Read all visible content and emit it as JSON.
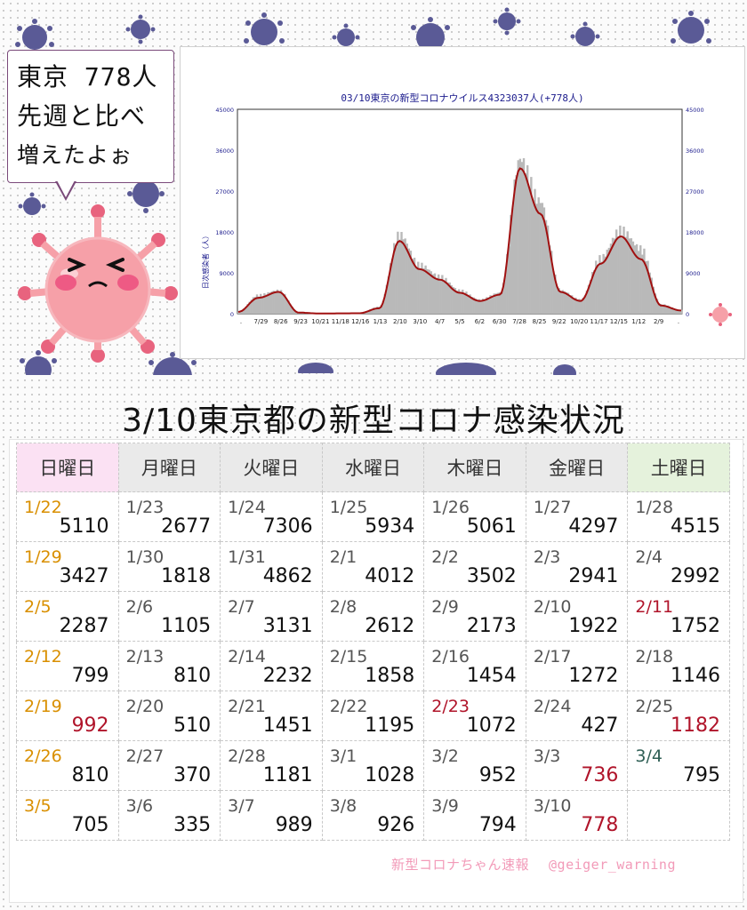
{
  "bubble": {
    "line1": "東京 778人",
    "line2": "先週と比べ",
    "line3": "増えたよぉ"
  },
  "chart_data": {
    "type": "bar",
    "title": "03/10東京の新型コロナウイルス4323037人(+778人)",
    "ylabel": "日次感染者（人）",
    "ylim": [
      0,
      45000
    ],
    "y_ticks": [
      "0",
      "9000",
      "18000",
      "27000",
      "36000",
      "45000"
    ],
    "categories": [
      ".",
      "7/29",
      "8/26",
      "9/23",
      "10/21",
      "11/18",
      "12/16",
      "1/13",
      "2/10",
      "3/10",
      "4/7",
      "5/5",
      "6/2",
      "6/30",
      "7/28",
      "8/25",
      "9/22",
      "10/20",
      "11/17",
      "12/15",
      "1/12",
      "2/9",
      "."
    ],
    "values": [
      500,
      4000,
      5000,
      300,
      60,
      80,
      120,
      1500,
      17000,
      10500,
      8000,
      5000,
      3000,
      4500,
      33000,
      24000,
      5000,
      3000,
      12000,
      18000,
      14000,
      2000,
      800
    ],
    "series": [
      {
        "name": "",
        "values": [
          400,
          3500,
          4800,
          250,
          50,
          70,
          100,
          1200,
          16000,
          9800,
          7500,
          4600,
          2800,
          4200,
          32000,
          22000,
          4800,
          2800,
          11000,
          17000,
          12000,
          1800,
          700
        ]
      }
    ],
    "bar_color": "#b9b9b9",
    "line_color": "#a01010",
    "grid": false,
    "legend": "none"
  },
  "headline": "3/10東京都の新型コロナ感染状況",
  "weekdays": [
    "日曜日",
    "月曜日",
    "火曜日",
    "水曜日",
    "木曜日",
    "金曜日",
    "土曜日"
  ],
  "calendar": [
    [
      {
        "date": "1/22",
        "value": "5110"
      },
      {
        "date": "1/23",
        "value": "2677"
      },
      {
        "date": "1/24",
        "value": "7306"
      },
      {
        "date": "1/25",
        "value": "5934"
      },
      {
        "date": "1/26",
        "value": "5061"
      },
      {
        "date": "1/27",
        "value": "4297"
      },
      {
        "date": "1/28",
        "value": "4515"
      }
    ],
    [
      {
        "date": "1/29",
        "value": "3427"
      },
      {
        "date": "1/30",
        "value": "1818"
      },
      {
        "date": "1/31",
        "value": "4862"
      },
      {
        "date": "2/1",
        "value": "4012"
      },
      {
        "date": "2/2",
        "value": "3502"
      },
      {
        "date": "2/3",
        "value": "2941"
      },
      {
        "date": "2/4",
        "value": "2992"
      }
    ],
    [
      {
        "date": "2/5",
        "value": "2287"
      },
      {
        "date": "2/6",
        "value": "1105"
      },
      {
        "date": "2/7",
        "value": "3131"
      },
      {
        "date": "2/8",
        "value": "2612"
      },
      {
        "date": "2/9",
        "value": "2173"
      },
      {
        "date": "2/10",
        "value": "1922"
      },
      {
        "date": "2/11",
        "value": "1752"
      }
    ],
    [
      {
        "date": "2/12",
        "value": "799"
      },
      {
        "date": "2/13",
        "value": "810"
      },
      {
        "date": "2/14",
        "value": "2232"
      },
      {
        "date": "2/15",
        "value": "1858"
      },
      {
        "date": "2/16",
        "value": "1454"
      },
      {
        "date": "2/17",
        "value": "1272"
      },
      {
        "date": "2/18",
        "value": "1146"
      }
    ],
    [
      {
        "date": "2/19",
        "value": "992"
      },
      {
        "date": "2/20",
        "value": "510"
      },
      {
        "date": "2/21",
        "value": "1451"
      },
      {
        "date": "2/22",
        "value": "1195"
      },
      {
        "date": "2/23",
        "value": "1072"
      },
      {
        "date": "2/24",
        "value": "427"
      },
      {
        "date": "2/25",
        "value": "1182"
      }
    ],
    [
      {
        "date": "2/26",
        "value": "810"
      },
      {
        "date": "2/27",
        "value": "370"
      },
      {
        "date": "2/28",
        "value": "1181"
      },
      {
        "date": "3/1",
        "value": "1028"
      },
      {
        "date": "3/2",
        "value": "952"
      },
      {
        "date": "3/3",
        "value": "736"
      },
      {
        "date": "3/4",
        "value": "795"
      }
    ],
    [
      {
        "date": "3/5",
        "value": "705"
      },
      {
        "date": "3/6",
        "value": "335"
      },
      {
        "date": "3/7",
        "value": "989"
      },
      {
        "date": "3/8",
        "value": "926"
      },
      {
        "date": "3/9",
        "value": "794"
      },
      {
        "date": "3/10",
        "value": "778"
      },
      {
        "date": "",
        "value": ""
      }
    ]
  ],
  "footer": {
    "source": "新型コロナちゃん速報",
    "handle": "@geiger_warning"
  },
  "colors": {
    "sunday_header": "#fbe1f3",
    "saturday_header": "#e5f2dc",
    "weekday_header": "#eaeaea",
    "sunday_date": "#d98f00",
    "holiday_red": "#b0142a",
    "footer_pink": "#f29ab8",
    "virus_purple": "#5a5a96",
    "mascot_pink": "#f6a0a8"
  }
}
